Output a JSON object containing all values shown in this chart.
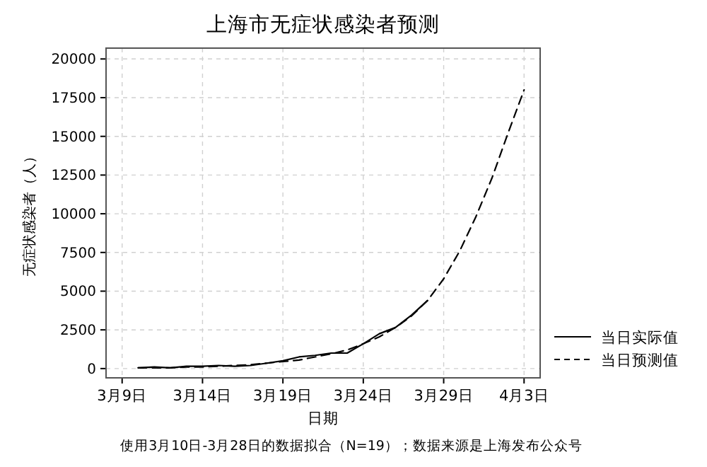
{
  "chart_data": {
    "type": "line",
    "title": "上海市无症状感染者预测",
    "xlabel": "日期",
    "ylabel": "无症状感染者（人）",
    "annotations": [
      "使用3月10日-3月28日的数据拟合（N=19）；数据来源是上海发布公众号"
    ],
    "xlim": [
      "--03-08",
      "--04-04"
    ],
    "ylim": [
      -600,
      20700
    ],
    "xticks": [
      {
        "value": "--03-09",
        "label": "3月9日"
      },
      {
        "value": "--03-14",
        "label": "3月14日"
      },
      {
        "value": "--03-19",
        "label": "3月19日"
      },
      {
        "value": "--03-24",
        "label": "3月24日"
      },
      {
        "value": "--03-29",
        "label": "3月29日"
      },
      {
        "value": "--04-03",
        "label": "4月3日"
      }
    ],
    "yticks": [
      0,
      2500,
      5000,
      7500,
      10000,
      12500,
      15000,
      17500,
      20000
    ],
    "grid": true,
    "legend": "right",
    "series": [
      {
        "name": "当日实际值",
        "color": "#000000",
        "line_style": "solid",
        "x": [
          "--03-10",
          "--03-11",
          "--03-12",
          "--03-13",
          "--03-14",
          "--03-15",
          "--03-16",
          "--03-17",
          "--03-18",
          "--03-19",
          "--03-20",
          "--03-21",
          "--03-22",
          "--03-23",
          "--03-24",
          "--03-25",
          "--03-26",
          "--03-27",
          "--03-28"
        ],
        "values": [
          50,
          100,
          50,
          150,
          150,
          200,
          150,
          200,
          350,
          500,
          750,
          850,
          1000,
          1000,
          1600,
          2250,
          2650,
          3450,
          4400
        ]
      },
      {
        "name": "当日预测值",
        "color": "#000000",
        "line_style": "dashed",
        "x": [
          "--03-10",
          "--03-11",
          "--03-12",
          "--03-13",
          "--03-14",
          "--03-15",
          "--03-16",
          "--03-17",
          "--03-18",
          "--03-19",
          "--03-20",
          "--03-21",
          "--03-22",
          "--03-23",
          "--03-24",
          "--03-25",
          "--03-26",
          "--03-27",
          "--03-28",
          "--03-29",
          "--03-30",
          "--03-31",
          "--04-01",
          "--04-02",
          "--04-03"
        ],
        "values": [
          50,
          50,
          50,
          100,
          100,
          150,
          200,
          250,
          350,
          450,
          550,
          750,
          950,
          1200,
          1600,
          2050,
          2650,
          3400,
          4400,
          5800,
          7600,
          9800,
          12300,
          15200,
          18000
        ]
      }
    ]
  }
}
